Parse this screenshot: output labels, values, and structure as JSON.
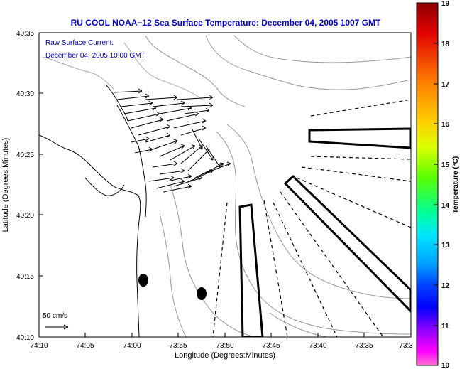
{
  "title": "RU COOL   NOAA−12  Sea Surface Temperature:  December 04, 2005 1007 GMT",
  "legend": {
    "line1": "Raw Surface Current:",
    "line2": "December 04, 2005 10:00 GMT"
  },
  "scale": {
    "label": "50 cm/s"
  },
  "axes": {
    "xlabel": "Longitude (Degrees:Minutes)",
    "ylabel": "Latitude (Degrees:Minutes)",
    "x_ticks": [
      "74:10",
      "74:05",
      "74:00",
      "73:55",
      "73:50",
      "73:45",
      "73:40",
      "73:35",
      "73:3"
    ],
    "y_ticks": [
      "40:35",
      "40:30",
      "40:25",
      "40:20",
      "40:15",
      "40:10"
    ]
  },
  "colorbar": {
    "label": "Temperature (°C)",
    "ticks": [
      "19",
      "18",
      "17",
      "16",
      "15",
      "14",
      "13",
      "12",
      "11",
      "10"
    ],
    "colors": [
      "#8b0000",
      "#e00000",
      "#ff7f00",
      "#ffd000",
      "#d8ff00",
      "#5cff00",
      "#00ff9a",
      "#00e6ff",
      "#00a0ff",
      "#0040ff",
      "#0000ff",
      "#8a00ff",
      "#ff00ff",
      "#ff70d0"
    ]
  }
}
